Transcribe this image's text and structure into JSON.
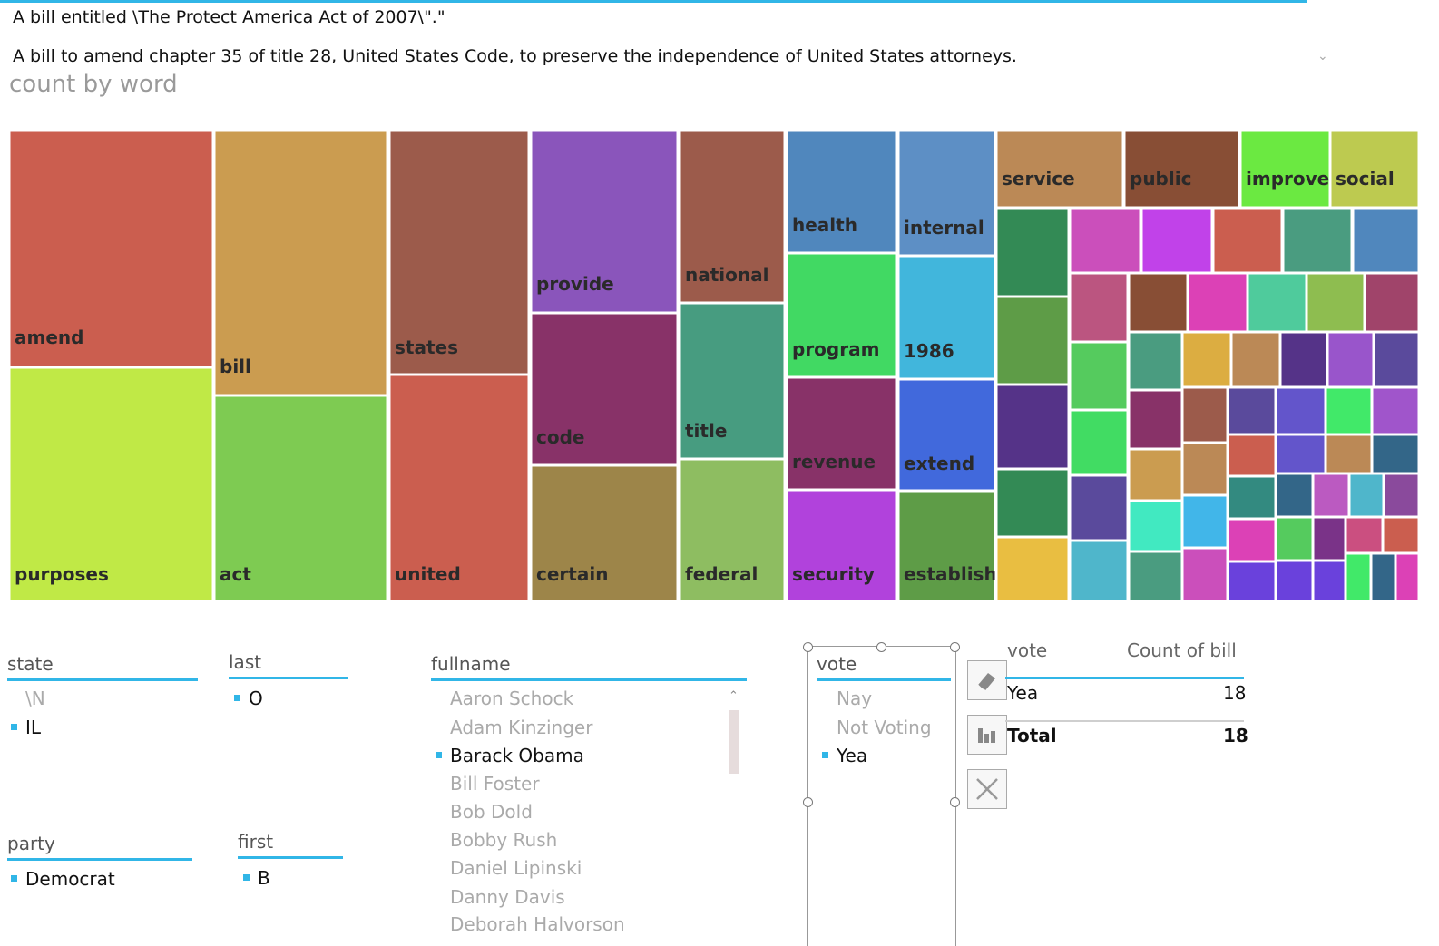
{
  "bills": {
    "line1": "A bill entitled \\The Protect America Act of 2007\\\".\"",
    "line2": "A bill to amend chapter 35 of title 28, United States Code, to preserve the independence of United States attorneys."
  },
  "chart_title": "count by word",
  "chart_data": {
    "type": "treemap",
    "labeled_words": [
      "amend",
      "purposes",
      "bill",
      "act",
      "states",
      "united",
      "provide",
      "code",
      "certain",
      "national",
      "title",
      "federal",
      "health",
      "program",
      "revenue",
      "security",
      "internal",
      "1986",
      "extend",
      "establish",
      "service",
      "public",
      "improve",
      "social"
    ],
    "colors": {
      "amend": "#cb5e4f",
      "purposes": "#c0e946",
      "bill": "#cb9c50",
      "act": "#7ecb52",
      "states": "#9c5b4b",
      "united": "#cb5e4f",
      "provide": "#8a55bb",
      "code": "#883268",
      "certain": "#9d8549",
      "national": "#9c5b4b",
      "title": "#479c80",
      "federal": "#8ebd61",
      "health": "#5087bd",
      "program": "#41d963",
      "revenue": "#883268",
      "security": "#b142dc",
      "internal": "#5d8fc5",
      "1986": "#41b6dc",
      "extend": "#4169dc",
      "establish": "#5e9c47",
      "service": "#bb8956",
      "public": "#884e35",
      "improve": "#6be941",
      "social": "#bdca50"
    }
  },
  "slicers": {
    "state": {
      "title": "state",
      "items": [
        {
          "label": "\\N",
          "selected": false
        },
        {
          "label": "IL",
          "selected": true
        }
      ]
    },
    "last": {
      "title": "last",
      "items": [
        {
          "label": "O",
          "selected": true
        }
      ]
    },
    "fullname": {
      "title": "fullname",
      "items": [
        {
          "label": "Aaron Schock",
          "selected": false
        },
        {
          "label": "Adam Kinzinger",
          "selected": false
        },
        {
          "label": "Barack Obama",
          "selected": true
        },
        {
          "label": "Bill Foster",
          "selected": false
        },
        {
          "label": "Bob Dold",
          "selected": false
        },
        {
          "label": "Bobby Rush",
          "selected": false
        },
        {
          "label": "Daniel Lipinski",
          "selected": false
        },
        {
          "label": "Danny Davis",
          "selected": false
        },
        {
          "label": "Deborah Halvorson",
          "selected": false
        }
      ]
    },
    "vote": {
      "title": "vote",
      "items": [
        {
          "label": "Nay",
          "selected": false
        },
        {
          "label": "Not Voting",
          "selected": false
        },
        {
          "label": "Yea",
          "selected": true
        }
      ]
    },
    "party": {
      "title": "party",
      "items": [
        {
          "label": "Democrat",
          "selected": true
        }
      ]
    },
    "first": {
      "title": "first",
      "items": [
        {
          "label": "B",
          "selected": true
        }
      ]
    }
  },
  "tools": [
    "eraser-icon",
    "bar-chart-icon",
    "close-icon"
  ],
  "table": {
    "col1": "vote",
    "col2": "Count of bill",
    "row_label": "Yea",
    "row_value": "18",
    "total_label": "Total",
    "total_value": "18"
  }
}
